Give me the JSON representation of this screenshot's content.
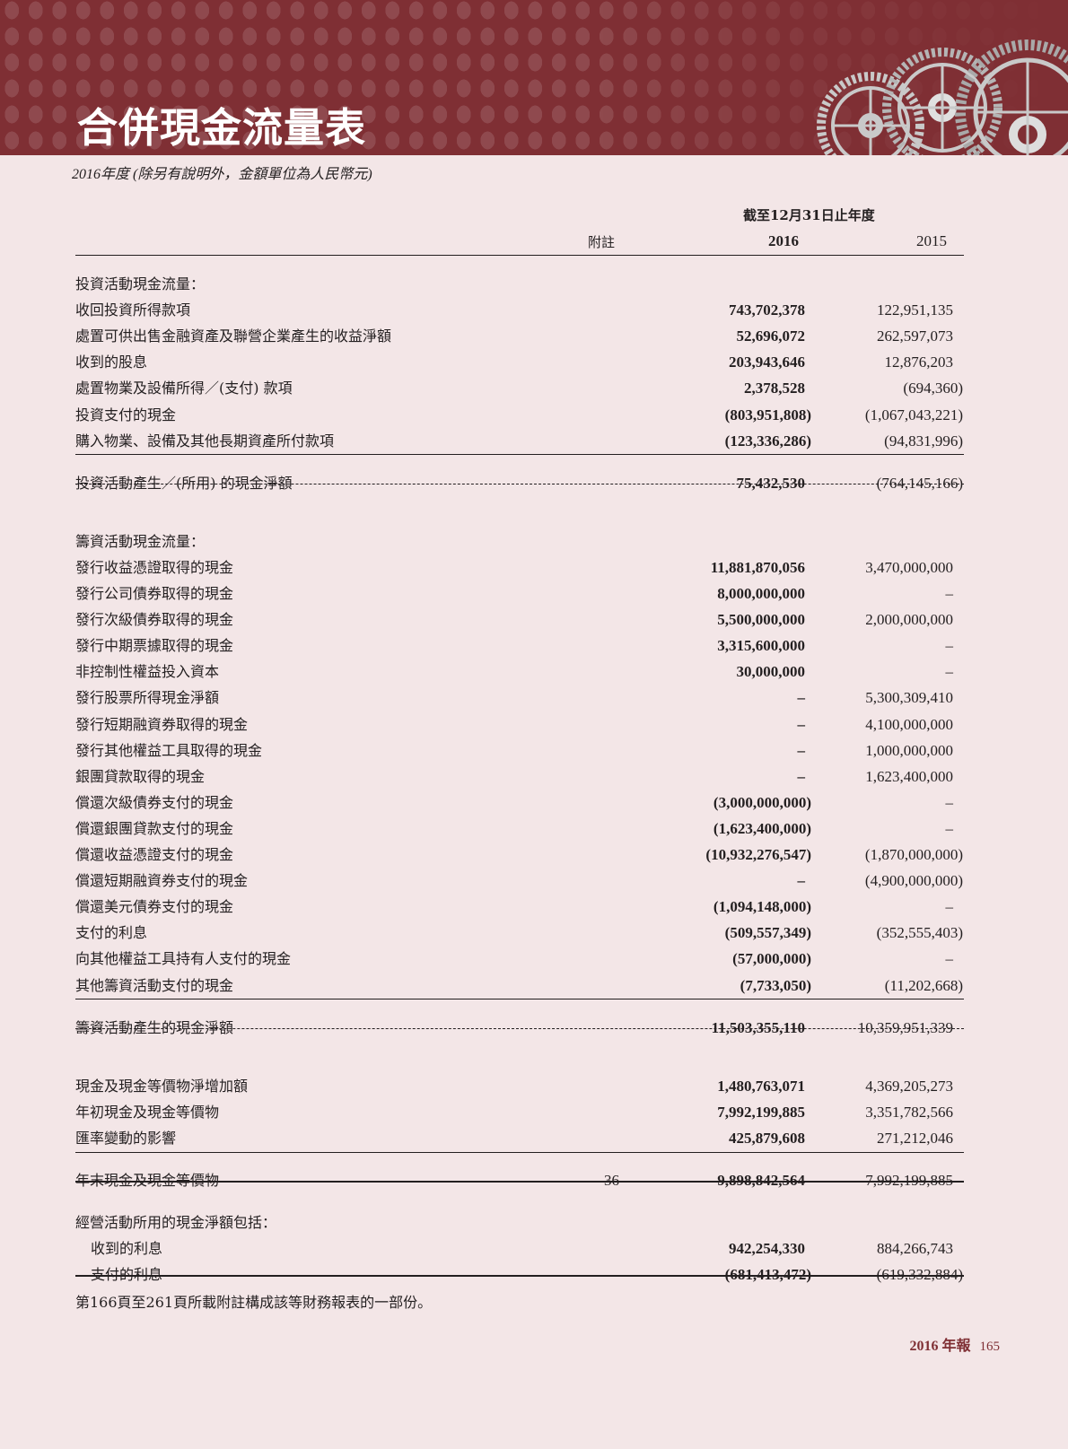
{
  "page": {
    "title": "合併現金流量表",
    "subtitle": "2016年度 (除另有說明外，金額單位為人民幣元)",
    "header": {
      "period": "截至12月31日止年度",
      "note": "附註",
      "year1": "2016",
      "year2": "2015"
    },
    "colors": {
      "banner": "#7f2f34",
      "background": "#f3e6e7"
    },
    "rows": [
      {
        "type": "section",
        "label": "投資活動現金流量："
      },
      {
        "label": "收回投資所得款項",
        "v2016": "743,702,378",
        "v2015": "122,951,135"
      },
      {
        "label": "處置可供出售金融資產及聯營企業產生的收益淨額",
        "v2016": "52,696,072",
        "v2015": "262,597,073"
      },
      {
        "label": "收到的股息",
        "v2016": "203,943,646",
        "v2015": "12,876,203"
      },
      {
        "label": "處置物業及設備所得／(支付) 款項",
        "v2016": "2,378,528",
        "v2015": "(694,360)"
      },
      {
        "label": "投資支付的現金",
        "v2016": "(803,951,808)",
        "v2015": "(1,067,043,221)"
      },
      {
        "label": "購入物業、設備及其他長期資產所付款項",
        "v2016": "(123,336,286)",
        "v2015": "(94,831,996)"
      },
      {
        "type": "subtotal",
        "label": "投資活動產生／(所用) 的現金淨額",
        "v2016": "75,432,530",
        "v2015": "(764,145,166)"
      },
      {
        "type": "section",
        "label": "籌資活動現金流量："
      },
      {
        "label": "發行收益憑證取得的現金",
        "v2016": "11,881,870,056",
        "v2015": "3,470,000,000"
      },
      {
        "label": "發行公司債券取得的現金",
        "v2016": "8,000,000,000",
        "v2015": "–"
      },
      {
        "label": "發行次級債券取得的現金",
        "v2016": "5,500,000,000",
        "v2015": "2,000,000,000"
      },
      {
        "label": "發行中期票據取得的現金",
        "v2016": "3,315,600,000",
        "v2015": "–"
      },
      {
        "label": "非控制性權益投入資本",
        "v2016": "30,000,000",
        "v2015": "–"
      },
      {
        "label": "發行股票所得現金淨額",
        "v2016": "–",
        "v2015": "5,300,309,410"
      },
      {
        "label": "發行短期融資券取得的現金",
        "v2016": "–",
        "v2015": "4,100,000,000"
      },
      {
        "label": "發行其他權益工具取得的現金",
        "v2016": "–",
        "v2015": "1,000,000,000"
      },
      {
        "label": "銀團貸款取得的現金",
        "v2016": "–",
        "v2015": "1,623,400,000"
      },
      {
        "label": "償還次級債券支付的現金",
        "v2016": "(3,000,000,000)",
        "v2015": "–"
      },
      {
        "label": "償還銀團貸款支付的現金",
        "v2016": "(1,623,400,000)",
        "v2015": "–"
      },
      {
        "label": "償還收益憑證支付的現金",
        "v2016": "(10,932,276,547)",
        "v2015": "(1,870,000,000)"
      },
      {
        "label": "償還短期融資券支付的現金",
        "v2016": "–",
        "v2015": "(4,900,000,000)"
      },
      {
        "label": "償還美元債券支付的現金",
        "v2016": "(1,094,148,000)",
        "v2015": "–"
      },
      {
        "label": "支付的利息",
        "v2016": "(509,557,349)",
        "v2015": "(352,555,403)"
      },
      {
        "label": "向其他權益工具持有人支付的現金",
        "v2016": "(57,000,000)",
        "v2015": "–"
      },
      {
        "label": "其他籌資活動支付的現金",
        "v2016": "(7,733,050)",
        "v2015": "(11,202,668)"
      },
      {
        "type": "subtotal",
        "label": "籌資活動產生的現金淨額",
        "v2016": "11,503,355,110",
        "v2015": "10,359,951,339"
      },
      {
        "label": "現金及現金等價物淨增加額",
        "v2016": "1,480,763,071",
        "v2015": "4,369,205,273"
      },
      {
        "label": "年初現金及現金等價物",
        "v2016": "7,992,199,885",
        "v2015": "3,351,782,566"
      },
      {
        "label": "匯率變動的影響",
        "v2016": "425,879,608",
        "v2015": "271,212,046"
      },
      {
        "type": "total",
        "label": "年末現金及現金等價物",
        "note": "36",
        "v2016": "9,898,842,564",
        "v2015": "7,992,199,885"
      },
      {
        "type": "section",
        "label": "經營活動所用的現金淨額包括："
      },
      {
        "indent": true,
        "label": "收到的利息",
        "v2016": "942,254,330",
        "v2015": "884,266,743"
      },
      {
        "indent": true,
        "label": "支付的利息",
        "v2016": "(681,413,472)",
        "v2015": "(619,332,884)"
      }
    ],
    "footnote": "第166頁至261頁所載附註構成該等財務報表的一部份。",
    "footer": {
      "report": "2016 年報",
      "page_number": "165"
    }
  }
}
